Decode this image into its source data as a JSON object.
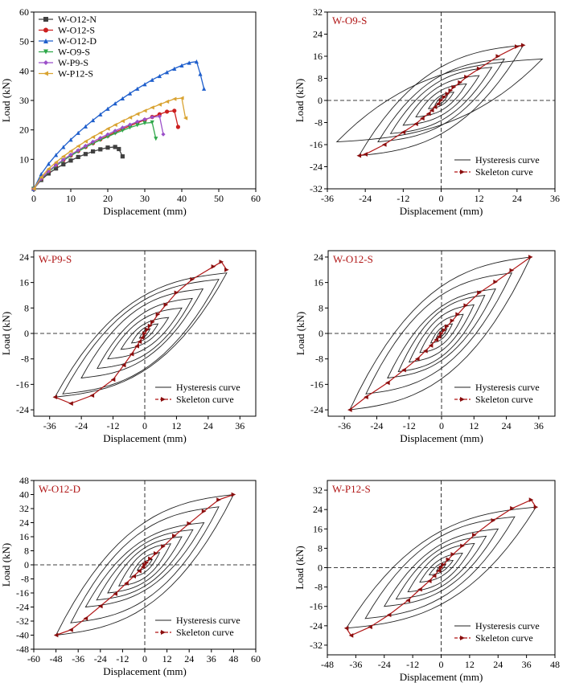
{
  "chart_data": [
    {
      "type": "line",
      "xlabel": "Displacement (mm)",
      "ylabel": "Load (kN)",
      "xlim": [
        0,
        60
      ],
      "ylim": [
        0,
        60
      ],
      "xticks": [
        0,
        10,
        20,
        30,
        40,
        50,
        60
      ],
      "yticks": [
        10,
        20,
        30,
        40,
        50,
        60
      ],
      "legend_position": "top-left",
      "series": [
        {
          "name": "W-O12-N",
          "color": "#404040",
          "marker": "square",
          "x": [
            0,
            2,
            4,
            6,
            8,
            10,
            12,
            14,
            16,
            18,
            20,
            22,
            23,
            24
          ],
          "y": [
            0,
            3,
            5.2,
            6.9,
            8.3,
            9.6,
            10.8,
            11.8,
            12.7,
            13.4,
            14,
            14.2,
            13.5,
            11
          ]
        },
        {
          "name": "W-O12-S",
          "color": "#cc1f1f",
          "marker": "circle",
          "x": [
            0,
            2,
            4,
            6,
            8,
            10,
            12,
            14,
            16,
            18,
            20,
            22,
            24,
            26,
            28,
            30,
            32,
            34,
            36,
            38,
            39
          ],
          "y": [
            0,
            3.5,
            6,
            8,
            9.7,
            11.3,
            12.8,
            14.2,
            15.5,
            16.8,
            18,
            19.2,
            20.3,
            21.4,
            22.4,
            23.4,
            24.4,
            25.3,
            26.2,
            26.5,
            21
          ]
        },
        {
          "name": "W-O12-D",
          "color": "#1f5fcc",
          "marker": "triangle-up",
          "x": [
            0,
            2,
            4,
            6,
            8,
            10,
            12,
            14,
            16,
            18,
            20,
            22,
            24,
            26,
            28,
            30,
            32,
            34,
            36,
            38,
            40,
            42,
            44,
            45,
            46
          ],
          "y": [
            0,
            5,
            8.5,
            11.5,
            14.2,
            16.7,
            19,
            21.2,
            23.3,
            25.3,
            27.2,
            29,
            30.7,
            32.4,
            34,
            35.5,
            37,
            38.3,
            39.6,
            40.8,
            41.9,
            42.8,
            43.2,
            39,
            34
          ]
        },
        {
          "name": "W-O9-S",
          "color": "#2fa84a",
          "marker": "triangle-down",
          "x": [
            0,
            2,
            4,
            6,
            8,
            10,
            12,
            14,
            16,
            18,
            20,
            22,
            24,
            26,
            28,
            30,
            32,
            33
          ],
          "y": [
            0,
            3.3,
            5.8,
            7.8,
            9.6,
            11.2,
            12.7,
            14.1,
            15.4,
            16.6,
            17.7,
            18.8,
            19.8,
            20.8,
            21.6,
            22.3,
            22.5,
            17
          ]
        },
        {
          "name": "W-P9-S",
          "color": "#9b4fc9",
          "marker": "diamond",
          "x": [
            0,
            2,
            4,
            6,
            8,
            10,
            12,
            14,
            16,
            18,
            20,
            22,
            24,
            26,
            28,
            30,
            32,
            34,
            35
          ],
          "y": [
            0,
            3.4,
            6,
            8.1,
            9.9,
            11.6,
            13.1,
            14.6,
            16,
            17.3,
            18.5,
            19.7,
            20.8,
            21.8,
            22.8,
            23.6,
            24.3,
            24.6,
            18.5
          ]
        },
        {
          "name": "W-P12-S",
          "color": "#d9a332",
          "marker": "triangle-left",
          "x": [
            0,
            2,
            4,
            6,
            8,
            10,
            12,
            14,
            16,
            18,
            20,
            22,
            24,
            26,
            28,
            30,
            32,
            34,
            36,
            38,
            40,
            41
          ],
          "y": [
            0,
            4,
            6.8,
            9,
            11,
            12.8,
            14.5,
            16.1,
            17.6,
            19,
            20.4,
            21.7,
            23,
            24.2,
            25.4,
            26.5,
            27.6,
            28.6,
            29.6,
            30.5,
            30.8,
            24
          ]
        }
      ]
    },
    {
      "type": "line",
      "title": "W-O9-S",
      "xlabel": "Displacement (mm)",
      "ylabel": "Load (kN)",
      "xlim": [
        -36,
        36
      ],
      "ylim": [
        -32,
        32
      ],
      "xticks": [
        -36,
        -24,
        -12,
        0,
        12,
        24,
        36
      ],
      "yticks": [
        -32,
        -24,
        -16,
        -8,
        0,
        8,
        16,
        24,
        32
      ],
      "legend_position": "bottom-right",
      "legend": [
        "Hysteresis curve",
        "Skeleton curve"
      ],
      "loops": [
        [
          2,
          1.8,
          -2,
          -1.8
        ],
        [
          4,
          3,
          -4,
          -3
        ],
        [
          8,
          6,
          -8,
          -6
        ],
        [
          12,
          9,
          -12,
          -9
        ],
        [
          16,
          12,
          -16,
          -12
        ],
        [
          20,
          15,
          -20,
          -15
        ],
        [
          26,
          20,
          -26,
          -20
        ],
        [
          32,
          15,
          -33,
          -15
        ]
      ],
      "skeleton": {
        "x": [
          -26,
          -24,
          -18,
          -12,
          -8,
          -6,
          -4,
          -3,
          -2,
          -1,
          0,
          1,
          2,
          3,
          4,
          6,
          8,
          12,
          18,
          24,
          26
        ],
        "y": [
          -20,
          -19.5,
          -16,
          -11.5,
          -8.5,
          -6.5,
          -4.8,
          -3.6,
          -2.4,
          -1.2,
          0,
          1.2,
          2.4,
          3.6,
          4.8,
          6.5,
          8.5,
          11.5,
          16,
          19.5,
          20
        ]
      }
    },
    {
      "type": "line",
      "title": "W-P9-S",
      "xlabel": "Displacement (mm)",
      "ylabel": "Load (kN)",
      "xlim": [
        -42,
        42
      ],
      "ylim": [
        -26,
        26
      ],
      "xticks": [
        -36,
        -24,
        -12,
        0,
        12,
        24,
        36
      ],
      "yticks": [
        -24,
        -16,
        -8,
        0,
        8,
        16,
        24
      ],
      "legend_position": "bottom-right",
      "legend": [
        "Hysteresis curve",
        "Skeleton curve"
      ],
      "loops": [
        [
          2,
          1.5,
          -2,
          -1.5
        ],
        [
          5,
          3,
          -5,
          -3
        ],
        [
          9,
          5,
          -9,
          -5
        ],
        [
          14,
          8,
          -14,
          -8
        ],
        [
          18,
          11,
          -18,
          -11
        ],
        [
          22,
          14,
          -24,
          -14
        ],
        [
          28,
          17,
          -31,
          -19
        ],
        [
          31,
          19,
          -34,
          -20
        ]
      ],
      "skeleton": {
        "x": [
          -34,
          -28,
          -20,
          -12,
          -8,
          -5,
          -3,
          -2,
          -1,
          0,
          1,
          2,
          3,
          5,
          8,
          12,
          18,
          26,
          29,
          31
        ],
        "y": [
          -20,
          -22,
          -19.5,
          -14.5,
          -10,
          -6.5,
          -4,
          -2.6,
          -1.3,
          0,
          1.2,
          2.4,
          3.6,
          6,
          9,
          12.8,
          17,
          21,
          22.5,
          20
        ]
      }
    },
    {
      "type": "line",
      "title": "W-O12-S",
      "xlabel": "Displacement (mm)",
      "ylabel": "Load (kN)",
      "xlim": [
        -42,
        42
      ],
      "ylim": [
        -26,
        26
      ],
      "xticks": [
        -36,
        -24,
        -12,
        0,
        12,
        24,
        36
      ],
      "yticks": [
        -24,
        -16,
        -8,
        0,
        8,
        16,
        24
      ],
      "legend_position": "bottom-right",
      "legend": [
        "Hysteresis curve",
        "Skeleton curve"
      ],
      "loops": [
        [
          2,
          1.5,
          -2,
          -1.5
        ],
        [
          4,
          3,
          -4,
          -3
        ],
        [
          8,
          6,
          -8,
          -6
        ],
        [
          12,
          9,
          -12,
          -9
        ],
        [
          16,
          12,
          -16,
          -12
        ],
        [
          20,
          14,
          -20,
          -14
        ],
        [
          26,
          19,
          -28,
          -19
        ],
        [
          33,
          24,
          -34,
          -24
        ]
      ],
      "skeleton": {
        "x": [
          -34,
          -28,
          -20,
          -14,
          -9,
          -6,
          -4,
          -2,
          -1,
          0,
          1,
          2,
          4,
          6,
          9,
          14,
          20,
          26,
          33
        ],
        "y": [
          -24,
          -20,
          -15.5,
          -11.5,
          -8,
          -5.5,
          -3.8,
          -2,
          -1,
          0,
          1,
          2.2,
          4,
          6,
          8.8,
          12.8,
          16.2,
          19.8,
          24
        ]
      }
    },
    {
      "type": "line",
      "title": "W-O12-D",
      "xlabel": "Displacement (mm)",
      "ylabel": "Load (kN)",
      "xlim": [
        -60,
        60
      ],
      "ylim": [
        -48,
        48
      ],
      "xticks": [
        -60,
        -48,
        -36,
        -24,
        -12,
        0,
        12,
        24,
        36,
        48,
        60
      ],
      "yticks": [
        -48,
        -40,
        -32,
        -24,
        -16,
        -8,
        0,
        8,
        16,
        24,
        32,
        40,
        48
      ],
      "legend_position": "bottom-right",
      "legend": [
        "Hysteresis curve",
        "Skeleton curve"
      ],
      "loops": [
        [
          4,
          3,
          -4,
          -3
        ],
        [
          8,
          7,
          -8,
          -7
        ],
        [
          14,
          12,
          -14,
          -12
        ],
        [
          20,
          16,
          -20,
          -16
        ],
        [
          26,
          20,
          -26,
          -20
        ],
        [
          32,
          24,
          -32,
          -24
        ],
        [
          40,
          33,
          -40,
          -33
        ],
        [
          48,
          40,
          -48,
          -40
        ]
      ],
      "skeleton": {
        "x": [
          -48,
          -40,
          -32,
          -24,
          -16,
          -10,
          -6,
          -3,
          -1,
          0,
          1,
          3,
          6,
          10,
          16,
          24,
          32,
          40,
          48
        ],
        "y": [
          -40,
          -37,
          -30.5,
          -23.5,
          -16.5,
          -10.5,
          -6.5,
          -3.5,
          -1.2,
          0,
          1.2,
          3.5,
          6.5,
          10.5,
          16.5,
          23.5,
          30.5,
          37,
          40
        ]
      }
    },
    {
      "type": "line",
      "title": "W-P12-S",
      "xlabel": "Displacement (mm)",
      "ylabel": "Load (kN)",
      "xlim": [
        -48,
        48
      ],
      "ylim": [
        -36,
        36
      ],
      "xticks": [
        -48,
        -36,
        -24,
        -12,
        0,
        12,
        24,
        36,
        48
      ],
      "yticks": [
        -32,
        -24,
        -16,
        -8,
        0,
        8,
        16,
        24,
        32
      ],
      "legend_position": "bottom-right",
      "legend": [
        "Hysteresis curve",
        "Skeleton curve"
      ],
      "loops": [
        [
          2,
          1.5,
          -2,
          -1.5
        ],
        [
          5,
          3,
          -5,
          -3
        ],
        [
          9,
          6,
          -9,
          -6
        ],
        [
          14,
          10,
          -14,
          -10
        ],
        [
          19,
          13,
          -19,
          -13
        ],
        [
          24,
          16,
          -24,
          -16
        ],
        [
          31,
          21,
          -32,
          -21
        ],
        [
          40,
          25,
          -40,
          -25
        ]
      ],
      "skeleton": {
        "x": [
          -40,
          -38,
          -30,
          -22,
          -14,
          -9,
          -5,
          -3,
          -1,
          0,
          1,
          3,
          5,
          9,
          14,
          22,
          30,
          38,
          40
        ],
        "y": [
          -25,
          -28,
          -24.5,
          -19.5,
          -13.5,
          -9,
          -5.5,
          -3.4,
          -1.2,
          0,
          1.2,
          3.4,
          5.5,
          9,
          13.5,
          19.5,
          24.5,
          28,
          25
        ]
      }
    }
  ]
}
